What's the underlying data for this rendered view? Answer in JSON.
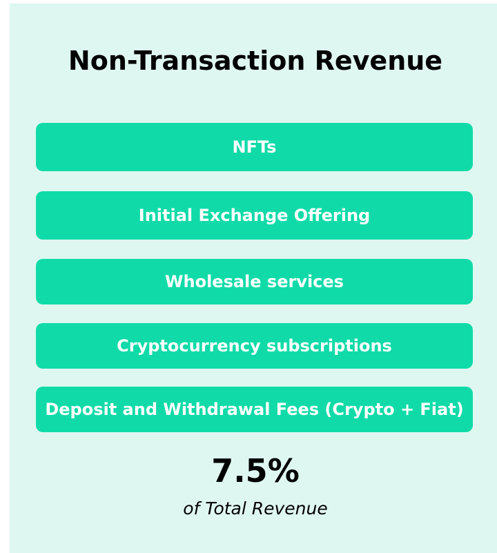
{
  "title": "Non-Transaction Revenue",
  "items": [
    "NFTs",
    "Initial Exchange Offering",
    "Wholesale services",
    "Cryptocurrency subscriptions",
    "Deposit and Withdrawal Fees (Crypto + Fiat)"
  ],
  "stat": {
    "value": "7.5%",
    "caption": "of Total Revenue"
  }
}
